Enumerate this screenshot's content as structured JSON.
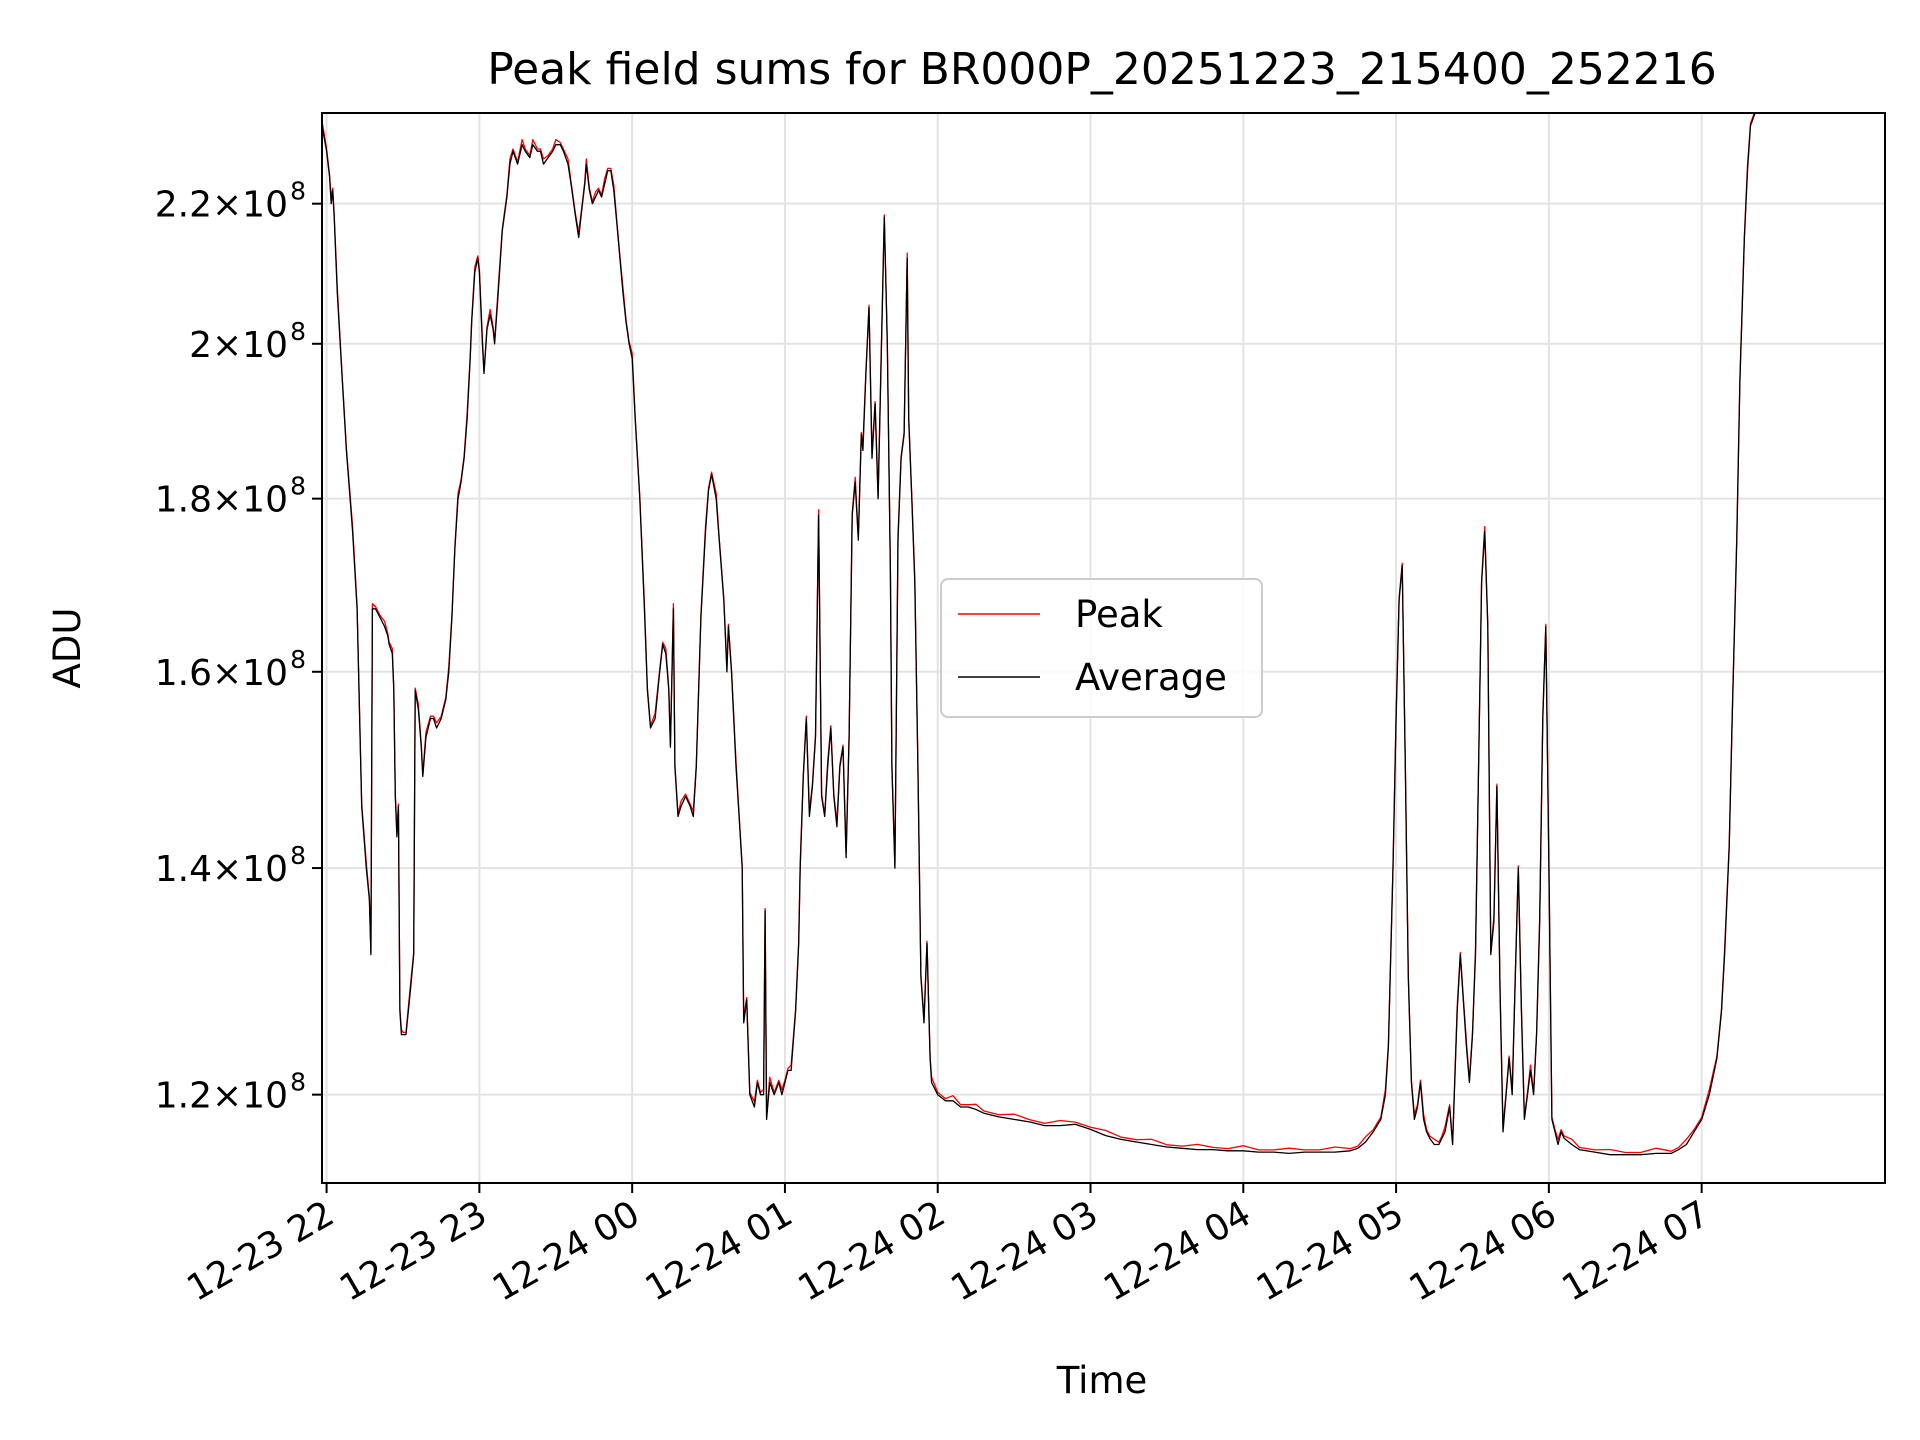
{
  "chart_data": {
    "type": "line",
    "title": "Peak field sums for BR000P_20251223_215400_252216",
    "xlabel": "Time",
    "ylabel": "ADU",
    "y_scale": "log",
    "ylim": [
      113000000,
      234000000
    ],
    "xlim_hours": [
      -0.03,
      10.2
    ],
    "grid": true,
    "legend_position": "center",
    "x_ticks": [
      {
        "h": 0,
        "label": "12-23 22"
      },
      {
        "h": 1,
        "label": "12-23 23"
      },
      {
        "h": 2,
        "label": "12-24 00"
      },
      {
        "h": 3,
        "label": "12-24 01"
      },
      {
        "h": 4,
        "label": "12-24 02"
      },
      {
        "h": 5,
        "label": "12-24 03"
      },
      {
        "h": 6,
        "label": "12-24 04"
      },
      {
        "h": 7,
        "label": "12-24 05"
      },
      {
        "h": 8,
        "label": "12-24 06"
      },
      {
        "h": 9,
        "label": "12-24 07"
      }
    ],
    "y_ticks": [
      {
        "v": 120000000,
        "mantissa": "1.2",
        "exp": "8"
      },
      {
        "v": 140000000,
        "mantissa": "1.4",
        "exp": "8"
      },
      {
        "v": 160000000,
        "mantissa": "1.6",
        "exp": "8"
      },
      {
        "v": 180000000,
        "mantissa": "1.8",
        "exp": "8"
      },
      {
        "v": 200000000,
        "mantissa": "2",
        "exp": "8"
      },
      {
        "v": 220000000,
        "mantissa": "2.2",
        "exp": "8"
      }
    ],
    "series": [
      {
        "name": "Peak",
        "color": "#ff0000"
      },
      {
        "name": "Average",
        "color": "#000000"
      }
    ],
    "points_hours_vs_millions": [
      [
        -0.03,
        232
      ],
      [
        0.0,
        228
      ],
      [
        0.02,
        224
      ],
      [
        0.03,
        220
      ],
      [
        0.04,
        222
      ],
      [
        0.05,
        218
      ],
      [
        0.07,
        207
      ],
      [
        0.1,
        196
      ],
      [
        0.13,
        186
      ],
      [
        0.17,
        176
      ],
      [
        0.2,
        167
      ],
      [
        0.23,
        146
      ],
      [
        0.26,
        140
      ],
      [
        0.28,
        137
      ],
      [
        0.29,
        132
      ],
      [
        0.3,
        167
      ],
      [
        0.32,
        167
      ],
      [
        0.35,
        166
      ],
      [
        0.38,
        165
      ],
      [
        0.4,
        164
      ],
      [
        0.41,
        163
      ],
      [
        0.43,
        162
      ],
      [
        0.44,
        158
      ],
      [
        0.45,
        147
      ],
      [
        0.46,
        143
      ],
      [
        0.47,
        146
      ],
      [
        0.48,
        127
      ],
      [
        0.49,
        125
      ],
      [
        0.5,
        125
      ],
      [
        0.52,
        125
      ],
      [
        0.55,
        129
      ],
      [
        0.57,
        132
      ],
      [
        0.58,
        158
      ],
      [
        0.6,
        156
      ],
      [
        0.62,
        152
      ],
      [
        0.63,
        149
      ],
      [
        0.65,
        153
      ],
      [
        0.68,
        155
      ],
      [
        0.7,
        155
      ],
      [
        0.72,
        154
      ],
      [
        0.75,
        155
      ],
      [
        0.78,
        157
      ],
      [
        0.8,
        160
      ],
      [
        0.82,
        166
      ],
      [
        0.84,
        174
      ],
      [
        0.86,
        180
      ],
      [
        0.88,
        182
      ],
      [
        0.9,
        185
      ],
      [
        0.92,
        190
      ],
      [
        0.94,
        198
      ],
      [
        0.95,
        203
      ],
      [
        0.97,
        210
      ],
      [
        0.99,
        212
      ],
      [
        1.0,
        210
      ],
      [
        1.02,
        200
      ],
      [
        1.03,
        196
      ],
      [
        1.05,
        202
      ],
      [
        1.07,
        204
      ],
      [
        1.09,
        202
      ],
      [
        1.1,
        200
      ],
      [
        1.12,
        206
      ],
      [
        1.15,
        216
      ],
      [
        1.18,
        221
      ],
      [
        1.2,
        226
      ],
      [
        1.22,
        228
      ],
      [
        1.25,
        226
      ],
      [
        1.28,
        229
      ],
      [
        1.3,
        228
      ],
      [
        1.33,
        227
      ],
      [
        1.35,
        229
      ],
      [
        1.38,
        228
      ],
      [
        1.4,
        228
      ],
      [
        1.42,
        226
      ],
      [
        1.45,
        227
      ],
      [
        1.48,
        228
      ],
      [
        1.5,
        229
      ],
      [
        1.53,
        229
      ],
      [
        1.55,
        228
      ],
      [
        1.58,
        226
      ],
      [
        1.6,
        223
      ],
      [
        1.63,
        218
      ],
      [
        1.65,
        215
      ],
      [
        1.67,
        219
      ],
      [
        1.69,
        223
      ],
      [
        1.7,
        226
      ],
      [
        1.72,
        222
      ],
      [
        1.74,
        220
      ],
      [
        1.76,
        221
      ],
      [
        1.78,
        222
      ],
      [
        1.8,
        221
      ],
      [
        1.82,
        223
      ],
      [
        1.84,
        225
      ],
      [
        1.86,
        225
      ],
      [
        1.88,
        222
      ],
      [
        1.9,
        217
      ],
      [
        1.92,
        212
      ],
      [
        1.94,
        207
      ],
      [
        1.96,
        203
      ],
      [
        1.98,
        200
      ],
      [
        2.0,
        198
      ],
      [
        2.02,
        190
      ],
      [
        2.05,
        180
      ],
      [
        2.08,
        167
      ],
      [
        2.1,
        158
      ],
      [
        2.12,
        154
      ],
      [
        2.15,
        155
      ],
      [
        2.18,
        160
      ],
      [
        2.2,
        163
      ],
      [
        2.22,
        162
      ],
      [
        2.24,
        158
      ],
      [
        2.25,
        152
      ],
      [
        2.27,
        167
      ],
      [
        2.28,
        150
      ],
      [
        2.3,
        145
      ],
      [
        2.32,
        146
      ],
      [
        2.35,
        147
      ],
      [
        2.38,
        146
      ],
      [
        2.4,
        145
      ],
      [
        2.42,
        150
      ],
      [
        2.45,
        166
      ],
      [
        2.48,
        176
      ],
      [
        2.5,
        181
      ],
      [
        2.52,
        183
      ],
      [
        2.55,
        180
      ],
      [
        2.57,
        175
      ],
      [
        2.6,
        168
      ],
      [
        2.62,
        160
      ],
      [
        2.63,
        165
      ],
      [
        2.65,
        160
      ],
      [
        2.68,
        150
      ],
      [
        2.7,
        145
      ],
      [
        2.72,
        140
      ],
      [
        2.73,
        126
      ],
      [
        2.75,
        128
      ],
      [
        2.77,
        120
      ],
      [
        2.8,
        119
      ],
      [
        2.82,
        121
      ],
      [
        2.84,
        120
      ],
      [
        2.86,
        120
      ],
      [
        2.87,
        136
      ],
      [
        2.88,
        118
      ],
      [
        2.9,
        121
      ],
      [
        2.93,
        120
      ],
      [
        2.96,
        121
      ],
      [
        2.98,
        120
      ],
      [
        3.0,
        121
      ],
      [
        3.02,
        122
      ],
      [
        3.04,
        122
      ],
      [
        3.07,
        127
      ],
      [
        3.09,
        133
      ],
      [
        3.1,
        140
      ],
      [
        3.12,
        149
      ],
      [
        3.14,
        155
      ],
      [
        3.16,
        145
      ],
      [
        3.18,
        148
      ],
      [
        3.2,
        153
      ],
      [
        3.22,
        178
      ],
      [
        3.24,
        147
      ],
      [
        3.26,
        145
      ],
      [
        3.28,
        150
      ],
      [
        3.3,
        154
      ],
      [
        3.32,
        147
      ],
      [
        3.34,
        144
      ],
      [
        3.36,
        150
      ],
      [
        3.38,
        152
      ],
      [
        3.4,
        141
      ],
      [
        3.42,
        153
      ],
      [
        3.44,
        178
      ],
      [
        3.46,
        182
      ],
      [
        3.48,
        175
      ],
      [
        3.5,
        188
      ],
      [
        3.51,
        186
      ],
      [
        3.53,
        196
      ],
      [
        3.55,
        205
      ],
      [
        3.57,
        185
      ],
      [
        3.59,
        192
      ],
      [
        3.61,
        180
      ],
      [
        3.63,
        198
      ],
      [
        3.65,
        218
      ],
      [
        3.67,
        200
      ],
      [
        3.69,
        171
      ],
      [
        3.7,
        150
      ],
      [
        3.72,
        140
      ],
      [
        3.74,
        175
      ],
      [
        3.76,
        185
      ],
      [
        3.78,
        188
      ],
      [
        3.8,
        212
      ],
      [
        3.81,
        190
      ],
      [
        3.83,
        180
      ],
      [
        3.85,
        170
      ],
      [
        3.87,
        150
      ],
      [
        3.89,
        130
      ],
      [
        3.91,
        126
      ],
      [
        3.93,
        133
      ],
      [
        3.95,
        123
      ],
      [
        3.96,
        121
      ],
      [
        4.0,
        120
      ],
      [
        4.05,
        119.5
      ],
      [
        4.1,
        119.5
      ],
      [
        4.15,
        119
      ],
      [
        4.2,
        119
      ],
      [
        4.25,
        118.8
      ],
      [
        4.3,
        118.5
      ],
      [
        4.4,
        118.2
      ],
      [
        4.5,
        118
      ],
      [
        4.6,
        117.8
      ],
      [
        4.7,
        117.5
      ],
      [
        4.8,
        117.5
      ],
      [
        4.9,
        117.6
      ],
      [
        5.0,
        117.2
      ],
      [
        5.1,
        116.7
      ],
      [
        5.2,
        116.4
      ],
      [
        5.3,
        116.2
      ],
      [
        5.4,
        116.0
      ],
      [
        5.5,
        115.8
      ],
      [
        5.6,
        115.7
      ],
      [
        5.7,
        115.6
      ],
      [
        5.8,
        115.6
      ],
      [
        5.9,
        115.5
      ],
      [
        6.0,
        115.5
      ],
      [
        6.1,
        115.4
      ],
      [
        6.2,
        115.4
      ],
      [
        6.3,
        115.3
      ],
      [
        6.4,
        115.4
      ],
      [
        6.5,
        115.4
      ],
      [
        6.6,
        115.4
      ],
      [
        6.7,
        115.5
      ],
      [
        6.75,
        115.7
      ],
      [
        6.8,
        116.2
      ],
      [
        6.85,
        117
      ],
      [
        6.9,
        118
      ],
      [
        6.93,
        120
      ],
      [
        6.95,
        124
      ],
      [
        6.98,
        140
      ],
      [
        7.0,
        155
      ],
      [
        7.02,
        168
      ],
      [
        7.04,
        172
      ],
      [
        7.06,
        150
      ],
      [
        7.08,
        130
      ],
      [
        7.1,
        121
      ],
      [
        7.12,
        118
      ],
      [
        7.14,
        119
      ],
      [
        7.16,
        121
      ],
      [
        7.18,
        118
      ],
      [
        7.2,
        117
      ],
      [
        7.22,
        116.5
      ],
      [
        7.25,
        116
      ],
      [
        7.28,
        116
      ],
      [
        7.3,
        116.5
      ],
      [
        7.32,
        117
      ],
      [
        7.35,
        119
      ],
      [
        7.37,
        116
      ],
      [
        7.4,
        127
      ],
      [
        7.42,
        132
      ],
      [
        7.44,
        128
      ],
      [
        7.46,
        124
      ],
      [
        7.48,
        121
      ],
      [
        7.5,
        125
      ],
      [
        7.52,
        132
      ],
      [
        7.54,
        150
      ],
      [
        7.56,
        170
      ],
      [
        7.58,
        176
      ],
      [
        7.6,
        165
      ],
      [
        7.62,
        132
      ],
      [
        7.64,
        135
      ],
      [
        7.66,
        148
      ],
      [
        7.68,
        129
      ],
      [
        7.7,
        117
      ],
      [
        7.72,
        120
      ],
      [
        7.74,
        123
      ],
      [
        7.76,
        120
      ],
      [
        7.78,
        130
      ],
      [
        7.8,
        140
      ],
      [
        7.82,
        127
      ],
      [
        7.84,
        118
      ],
      [
        7.86,
        120
      ],
      [
        7.88,
        122
      ],
      [
        7.9,
        120
      ],
      [
        7.92,
        125
      ],
      [
        7.94,
        135
      ],
      [
        7.96,
        155
      ],
      [
        7.98,
        165
      ],
      [
        8.0,
        140
      ],
      [
        8.02,
        118
      ],
      [
        8.04,
        117
      ],
      [
        8.06,
        116
      ],
      [
        8.08,
        117
      ],
      [
        8.1,
        116.5
      ],
      [
        8.15,
        116
      ],
      [
        8.2,
        115.6
      ],
      [
        8.3,
        115.4
      ],
      [
        8.4,
        115.2
      ],
      [
        8.5,
        115.2
      ],
      [
        8.6,
        115.2
      ],
      [
        8.7,
        115.3
      ],
      [
        8.8,
        115.3
      ],
      [
        8.85,
        115.6
      ],
      [
        8.9,
        116
      ],
      [
        8.95,
        117
      ],
      [
        9.0,
        118
      ],
      [
        9.05,
        120
      ],
      [
        9.1,
        123
      ],
      [
        9.13,
        127
      ],
      [
        9.15,
        132
      ],
      [
        9.18,
        142
      ],
      [
        9.2,
        155
      ],
      [
        9.23,
        175
      ],
      [
        9.25,
        195
      ],
      [
        9.28,
        215
      ],
      [
        9.3,
        225
      ],
      [
        9.32,
        232
      ],
      [
        9.35,
        234
      ]
    ],
    "legend": {
      "peak_label": "Peak",
      "average_label": "Average"
    }
  }
}
